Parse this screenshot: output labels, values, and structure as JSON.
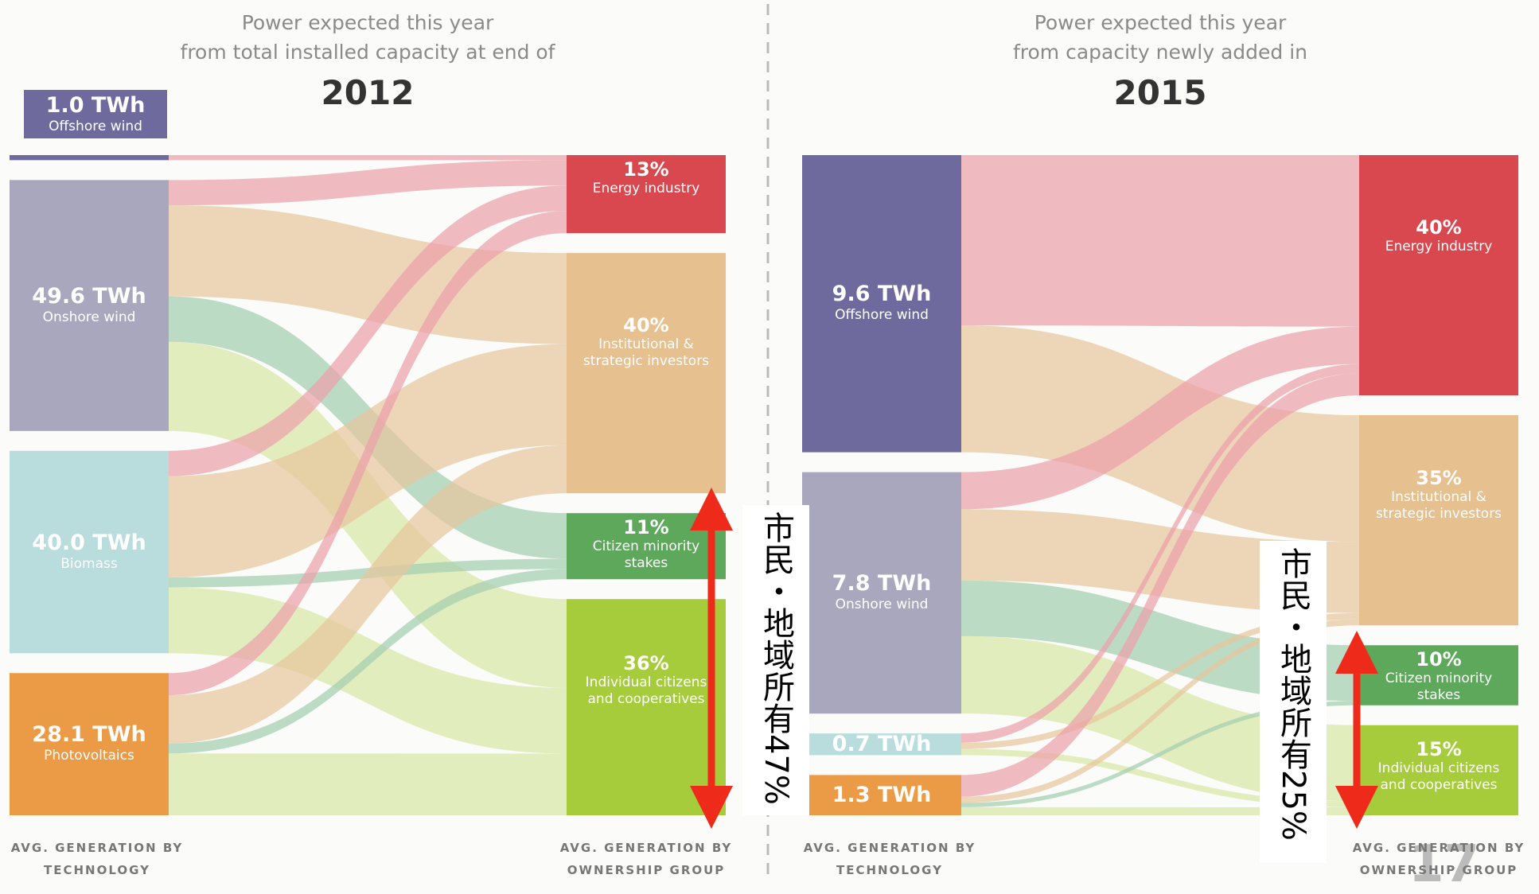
{
  "chart_data": [
    {
      "type": "sankey",
      "title_lines": [
        "Power expected this year",
        "from total installed capacity at end of"
      ],
      "year": "2012",
      "sources": [
        {
          "name": "Offshore wind",
          "value": 1.0,
          "value_label": "1.0 TWh",
          "color": "#6e6a9e"
        },
        {
          "name": "Onshore wind",
          "value": 49.6,
          "value_label": "49.6 TWh",
          "color": "#a9a7bd"
        },
        {
          "name": "Biomass",
          "value": 40.0,
          "value_label": "40.0 TWh",
          "color": "#b9dcdd"
        },
        {
          "name": "Photovoltaics",
          "value": 28.1,
          "value_label": "28.1 TWh",
          "color": "#eb9a45"
        }
      ],
      "targets": [
        {
          "name": "Energy industry",
          "value": 13,
          "value_label": "13%",
          "color": "#d9474f",
          "link_color": "#eba1aa"
        },
        {
          "name": "Institutional & strategic investors",
          "value": 40,
          "value_label": "40%",
          "color": "#e6c08e",
          "link_color": "#e8c69e"
        },
        {
          "name": "Citizen minority stakes",
          "value": 11,
          "value_label": "11%",
          "color": "#5da85a",
          "link_color": "#a3cfae"
        },
        {
          "name": "Individual citizens and cooperatives",
          "value": 36,
          "value_label": "36%",
          "color": "#a6cc3c",
          "link_color": "#d8e7a6"
        }
      ],
      "links": [
        {
          "source": 0,
          "target": 0,
          "value": 1.0
        },
        {
          "source": 1,
          "target": 0,
          "value": 5
        },
        {
          "source": 1,
          "target": 1,
          "value": 18
        },
        {
          "source": 1,
          "target": 2,
          "value": 9
        },
        {
          "source": 1,
          "target": 3,
          "value": 17.6
        },
        {
          "source": 2,
          "target": 0,
          "value": 5
        },
        {
          "source": 2,
          "target": 1,
          "value": 20
        },
        {
          "source": 2,
          "target": 2,
          "value": 2
        },
        {
          "source": 2,
          "target": 3,
          "value": 13
        },
        {
          "source": 3,
          "target": 0,
          "value": 4.4
        },
        {
          "source": 3,
          "target": 1,
          "value": 9.5
        },
        {
          "source": 3,
          "target": 2,
          "value": 2
        },
        {
          "source": 3,
          "target": 3,
          "value": 12.2
        }
      ],
      "source_axis_label": "AVG. GENERATION BY TECHNOLOGY",
      "target_axis_label": "AVG. GENERATION BY OWNERSHIP GROUP",
      "annotation": "市民・地域所有47%"
    },
    {
      "type": "sankey",
      "title_lines": [
        "Power expected this year",
        "from capacity newly added in"
      ],
      "year": "2015",
      "sources": [
        {
          "name": "Offshore wind",
          "value": 9.6,
          "value_label": "9.6 TWh",
          "color": "#6e6a9e"
        },
        {
          "name": "Onshore wind",
          "value": 7.8,
          "value_label": "7.8 TWh",
          "color": "#a9a7bd"
        },
        {
          "value": 0.7,
          "value_label": "0.7 TWh",
          "color": "#b9dcdd"
        },
        {
          "value": 1.3,
          "value_label": "1.3 TWh",
          "color": "#eb9a45"
        }
      ],
      "targets": [
        {
          "name": "Energy industry",
          "value": 40,
          "value_label": "40%",
          "color": "#d9474f",
          "link_color": "#eba1aa"
        },
        {
          "name": "Institutional & strategic investors",
          "value": 35,
          "value_label": "35%",
          "color": "#e6c08e",
          "link_color": "#e8c69e"
        },
        {
          "name": "Citizen minority stakes",
          "value": 10,
          "value_label": "10%",
          "color": "#5da85a",
          "link_color": "#a3cfae"
        },
        {
          "name": "Individual citizens and cooperatives",
          "value": 15,
          "value_label": "15%",
          "color": "#a6cc3c",
          "link_color": "#d8e7a6"
        }
      ],
      "links": [
        {
          "source": 0,
          "target": 0,
          "value": 5.5
        },
        {
          "source": 0,
          "target": 1,
          "value": 4.1
        },
        {
          "source": 1,
          "target": 0,
          "value": 1.2
        },
        {
          "source": 1,
          "target": 1,
          "value": 2.3
        },
        {
          "source": 1,
          "target": 2,
          "value": 1.8
        },
        {
          "source": 1,
          "target": 3,
          "value": 2.5
        },
        {
          "source": 2,
          "target": 0,
          "value": 0.3
        },
        {
          "source": 2,
          "target": 1,
          "value": 0.2
        },
        {
          "source": 2,
          "target": 3,
          "value": 0.2
        },
        {
          "source": 3,
          "target": 0,
          "value": 0.7
        },
        {
          "source": 3,
          "target": 1,
          "value": 0.2
        },
        {
          "source": 3,
          "target": 2,
          "value": 0.14
        },
        {
          "source": 3,
          "target": 3,
          "value": 0.26
        }
      ],
      "source_axis_label": "AVG. GENERATION BY TECHNOLOGY",
      "target_axis_label": "AVG. GENERATION BY OWNERSHIP GROUP",
      "annotation": "市民・地域所有25%"
    }
  ],
  "page_number": "17"
}
